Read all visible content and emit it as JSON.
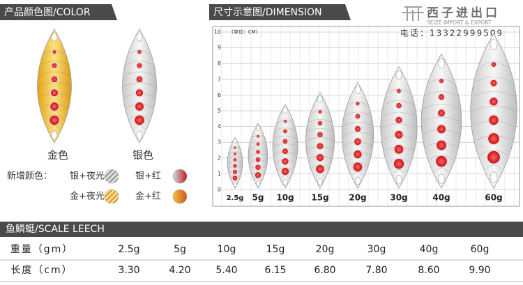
{
  "color_section": {
    "title": "产品颜色图/COLOR",
    "swatches": [
      "金色",
      "银色"
    ],
    "new_colors_label": "新增颜色：",
    "new_colors": [
      "银+夜光",
      "银+红",
      "金+夜光",
      "金+红"
    ]
  },
  "dimension_section": {
    "title": "尺寸示意图/DIMENSION",
    "unit": "(单位：CM)",
    "yticks": [
      0,
      1,
      2,
      3,
      4,
      5,
      6,
      7,
      8,
      9,
      10
    ]
  },
  "brand": {
    "name": "西子进出口",
    "english": "SEIZE IMPORT & EXPORT",
    "phone": "电话：13322999509"
  },
  "table": {
    "title": "鱼鳞蜓/SCALE LEECH",
    "rows": [
      [
        "重量（gm）",
        "2.5g",
        "5g",
        "10g",
        "15g",
        "20g",
        "30g",
        "40g",
        "60g"
      ],
      [
        "长度（cm）",
        "3.30",
        "4.20",
        "5.40",
        "6.15",
        "6.80",
        "7.80",
        "8.60",
        "9.90"
      ]
    ]
  }
}
